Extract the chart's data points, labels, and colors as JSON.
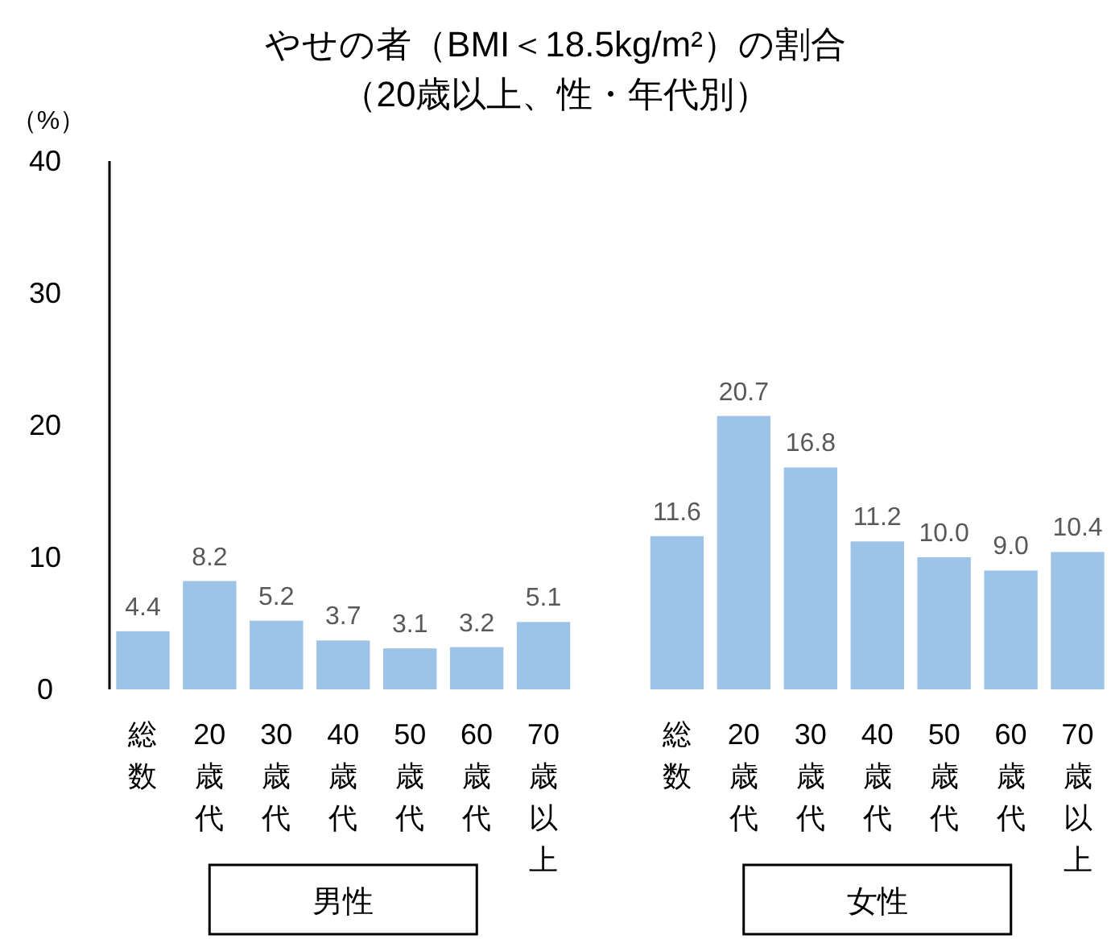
{
  "chart_data": {
    "type": "bar",
    "title": "やせの者（BMI＜18.5kg/m²）の割合",
    "subtitle": "（20歳以上、性・年代別）",
    "ylabel": "（%）",
    "categories": [
      "総数",
      "20歳代",
      "30歳代",
      "40歳代",
      "50歳代",
      "60歳代",
      "70歳以上",
      null,
      "総数",
      "20歳代",
      "30歳代",
      "40歳代",
      "50歳代",
      "60歳代",
      "70歳以上"
    ],
    "values": [
      4.4,
      8.2,
      5.2,
      3.7,
      3.1,
      3.2,
      5.1,
      null,
      11.6,
      20.7,
      16.8,
      11.2,
      10.0,
      9.0,
      10.4
    ],
    "color": "#9dc3e6",
    "ylim": [
      0,
      40
    ],
    "yticks": [
      0,
      10,
      20,
      30,
      40
    ],
    "value_labels": [
      "4.4",
      "8.2",
      "5.2",
      "3.7",
      "3.1",
      "3.2",
      "5.1",
      null,
      "11.6",
      "20.7",
      "16.8",
      "11.2",
      "10.0",
      "9.0",
      "10.4"
    ],
    "grid": false,
    "annotations": [
      "男性",
      "女性"
    ]
  }
}
